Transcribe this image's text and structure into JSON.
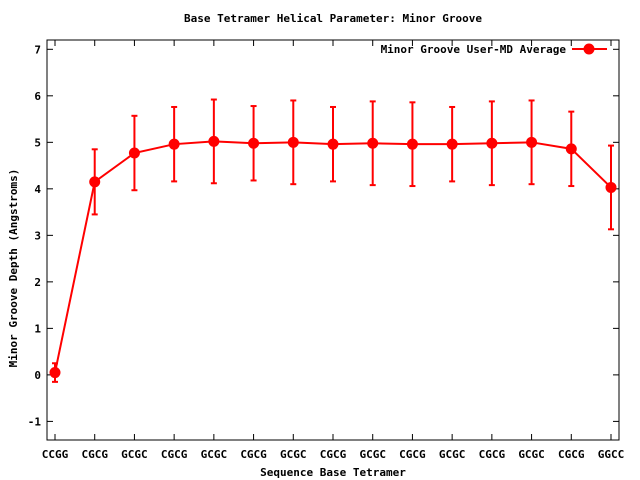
{
  "chart_data": {
    "type": "line",
    "title": "Base Tetramer Helical Parameter: Minor Groove",
    "xlabel": "Sequence Base Tetramer",
    "ylabel": "Minor Groove Depth (Angstroms)",
    "ylim": [
      -1.4,
      7.2
    ],
    "yticks": [
      -1,
      0,
      1,
      2,
      3,
      4,
      5,
      6,
      7
    ],
    "categories": [
      "CCGG",
      "CGCG",
      "GCGC",
      "CGCG",
      "GCGC",
      "CGCG",
      "GCGC",
      "CGCG",
      "GCGC",
      "CGCG",
      "GCGC",
      "CGCG",
      "GCGC",
      "CGCG",
      "GGCC"
    ],
    "grid": false,
    "legend_position": "top-right",
    "series": [
      {
        "name": "Minor Groove User-MD Average",
        "color": "#ff0000",
        "marker": "circle",
        "values": [
          0.05,
          4.15,
          4.77,
          4.96,
          5.02,
          4.98,
          5.0,
          4.96,
          4.98,
          4.96,
          4.96,
          4.98,
          5.0,
          4.86,
          4.03
        ],
        "error": [
          0.2,
          0.7,
          0.8,
          0.8,
          0.9,
          0.8,
          0.9,
          0.8,
          0.9,
          0.9,
          0.8,
          0.9,
          0.9,
          0.8,
          0.9
        ]
      }
    ]
  }
}
